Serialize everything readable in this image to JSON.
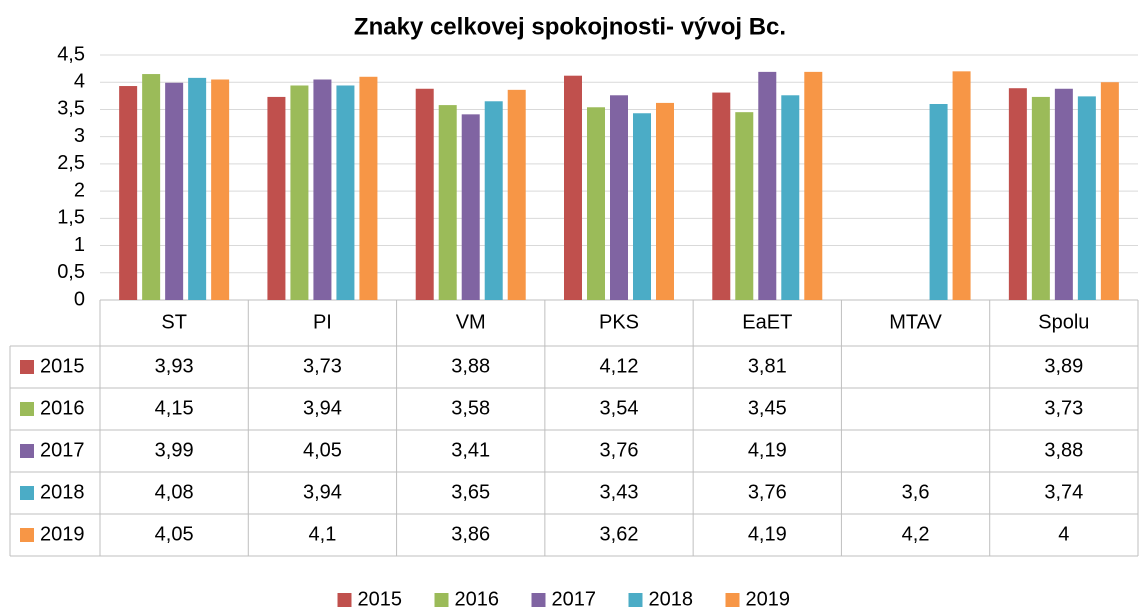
{
  "chart_data": {
    "type": "bar",
    "title": "Znaky celkovej spokojnosti- vývoj Bc.",
    "categories": [
      "ST",
      "PI",
      "VM",
      "PKS",
      "EaET",
      "MTAV",
      "Spolu"
    ],
    "series": [
      {
        "name": "2015",
        "color": "#c0504d",
        "values": [
          3.93,
          3.73,
          3.88,
          4.12,
          3.81,
          null,
          3.89
        ],
        "value_labels": [
          "3,93",
          "3,73",
          "3,88",
          "4,12",
          "3,81",
          null,
          "3,89"
        ]
      },
      {
        "name": "2016",
        "color": "#9bbb59",
        "values": [
          4.15,
          3.94,
          3.58,
          3.54,
          3.45,
          null,
          3.73
        ],
        "value_labels": [
          "4,15",
          "3,94",
          "3,58",
          "3,54",
          "3,45",
          null,
          "3,73"
        ]
      },
      {
        "name": "2017",
        "color": "#8064a2",
        "values": [
          3.99,
          4.05,
          3.41,
          3.76,
          4.19,
          null,
          3.88
        ],
        "value_labels": [
          "3,99",
          "4,05",
          "3,41",
          "3,76",
          "4,19",
          null,
          "3,88"
        ]
      },
      {
        "name": "2018",
        "color": "#4bacc6",
        "values": [
          4.08,
          3.94,
          3.65,
          3.43,
          3.76,
          3.6,
          3.74
        ],
        "value_labels": [
          "4,08",
          "3,94",
          "3,65",
          "3,43",
          "3,76",
          "3,6",
          "3,74"
        ]
      },
      {
        "name": "2019",
        "color": "#f79646",
        "values": [
          4.05,
          4.1,
          3.86,
          3.62,
          4.19,
          4.2,
          4
        ],
        "value_labels": [
          "4,05",
          "4,1",
          "3,86",
          "3,62",
          "4,19",
          "4,2",
          "4"
        ]
      }
    ],
    "ylim": [
      0,
      4.5
    ],
    "yticks": [
      0,
      {
        "value": 0.5,
        "label": "0,5"
      },
      1,
      {
        "value": 1.5,
        "label": "1,5"
      },
      2,
      {
        "value": 2.5,
        "label": "2,5"
      },
      3,
      {
        "value": 3.5,
        "label": "3,5"
      },
      4,
      {
        "value": 4.5,
        "label": "4,5"
      }
    ],
    "grid": true
  }
}
